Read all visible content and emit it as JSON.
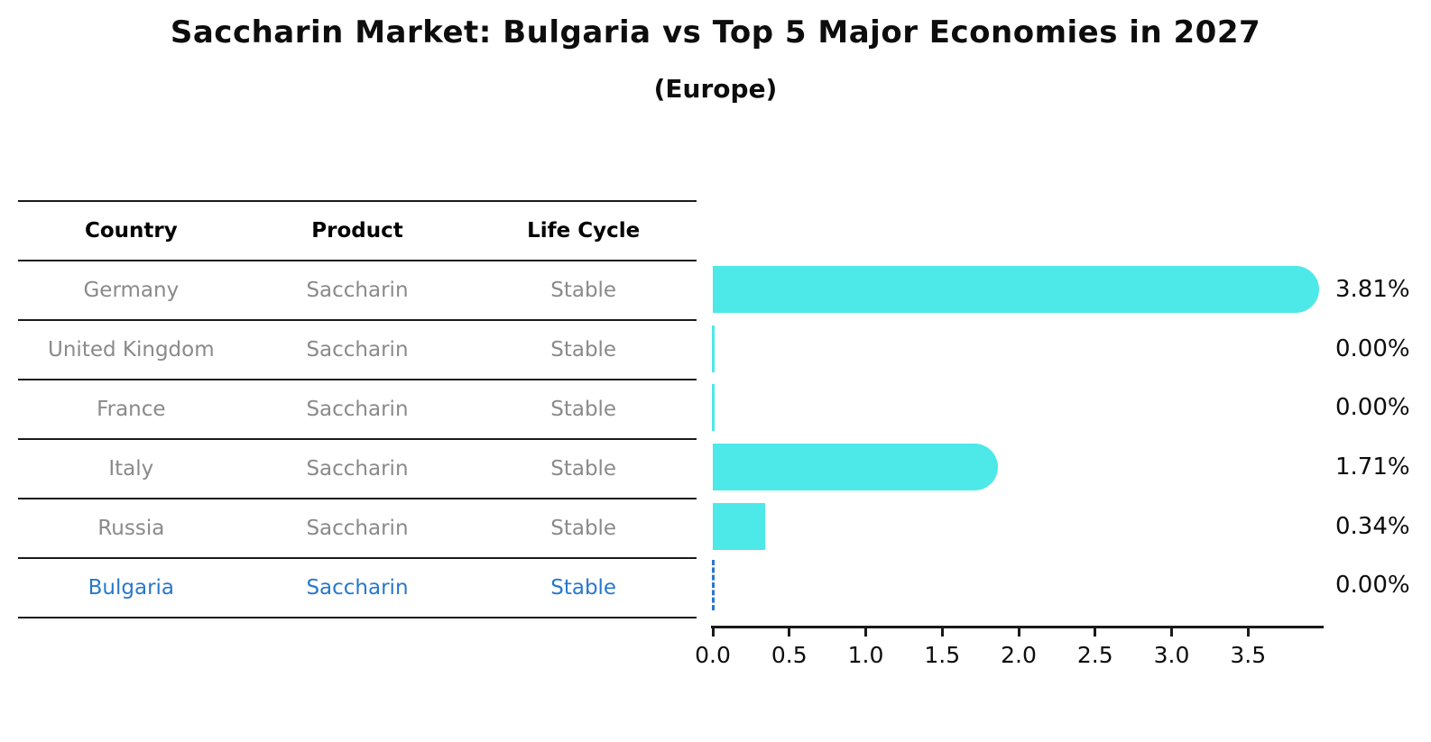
{
  "header": {
    "title": "Saccharin Market: Bulgaria vs Top 5 Major Economies in 2027",
    "subtitle": "(Europe)"
  },
  "table": {
    "columns": [
      "Country",
      "Product",
      "Life Cycle"
    ]
  },
  "rows": [
    {
      "country": "Germany",
      "product": "Saccharin",
      "life_cycle": "Stable",
      "value": 3.81,
      "value_label": "3.81%",
      "highlight": false
    },
    {
      "country": "United Kingdom",
      "product": "Saccharin",
      "life_cycle": "Stable",
      "value": 0.0,
      "value_label": "0.00%",
      "highlight": false
    },
    {
      "country": "France",
      "product": "Saccharin",
      "life_cycle": "Stable",
      "value": 0.0,
      "value_label": "0.00%",
      "highlight": false
    },
    {
      "country": "Italy",
      "product": "Saccharin",
      "life_cycle": "Stable",
      "value": 1.71,
      "value_label": "1.71%",
      "highlight": false
    },
    {
      "country": "Russia",
      "product": "Saccharin",
      "life_cycle": "Stable",
      "value": 0.34,
      "value_label": "0.34%",
      "highlight": false
    },
    {
      "country": "Bulgaria",
      "product": "Saccharin",
      "life_cycle": "Stable",
      "value": 0.0,
      "value_label": "0.00%",
      "highlight": true
    }
  ],
  "chart_data": {
    "type": "bar",
    "orientation": "horizontal",
    "title": "Saccharin Market: Bulgaria vs Top 5 Major Economies in 2027",
    "subtitle": "(Europe)",
    "categories": [
      "Germany",
      "United Kingdom",
      "France",
      "Italy",
      "Russia",
      "Bulgaria"
    ],
    "values": [
      3.81,
      0.0,
      0.0,
      1.71,
      0.34,
      0.0
    ],
    "value_labels": [
      "3.81%",
      "0.00%",
      "0.00%",
      "1.71%",
      "0.34%",
      "0.00%"
    ],
    "xlabel": "",
    "ylabel": "",
    "xlim": [
      0,
      4.0
    ],
    "xticks": [
      0.0,
      0.5,
      1.0,
      1.5,
      2.0,
      2.5,
      3.0,
      3.5
    ],
    "grid": false,
    "legend": false,
    "bar_color": "#4DE8E8",
    "highlight_color": "#2878CC",
    "highlighted_category": "Bulgaria",
    "highlighted_bar_style": "dashed-zero-line"
  },
  "colors": {
    "bar": "#4DE8E8",
    "highlight_blue": "#2878CC",
    "table_text_gray": "#8A8A8A",
    "line_black": "#1A1A1A"
  }
}
